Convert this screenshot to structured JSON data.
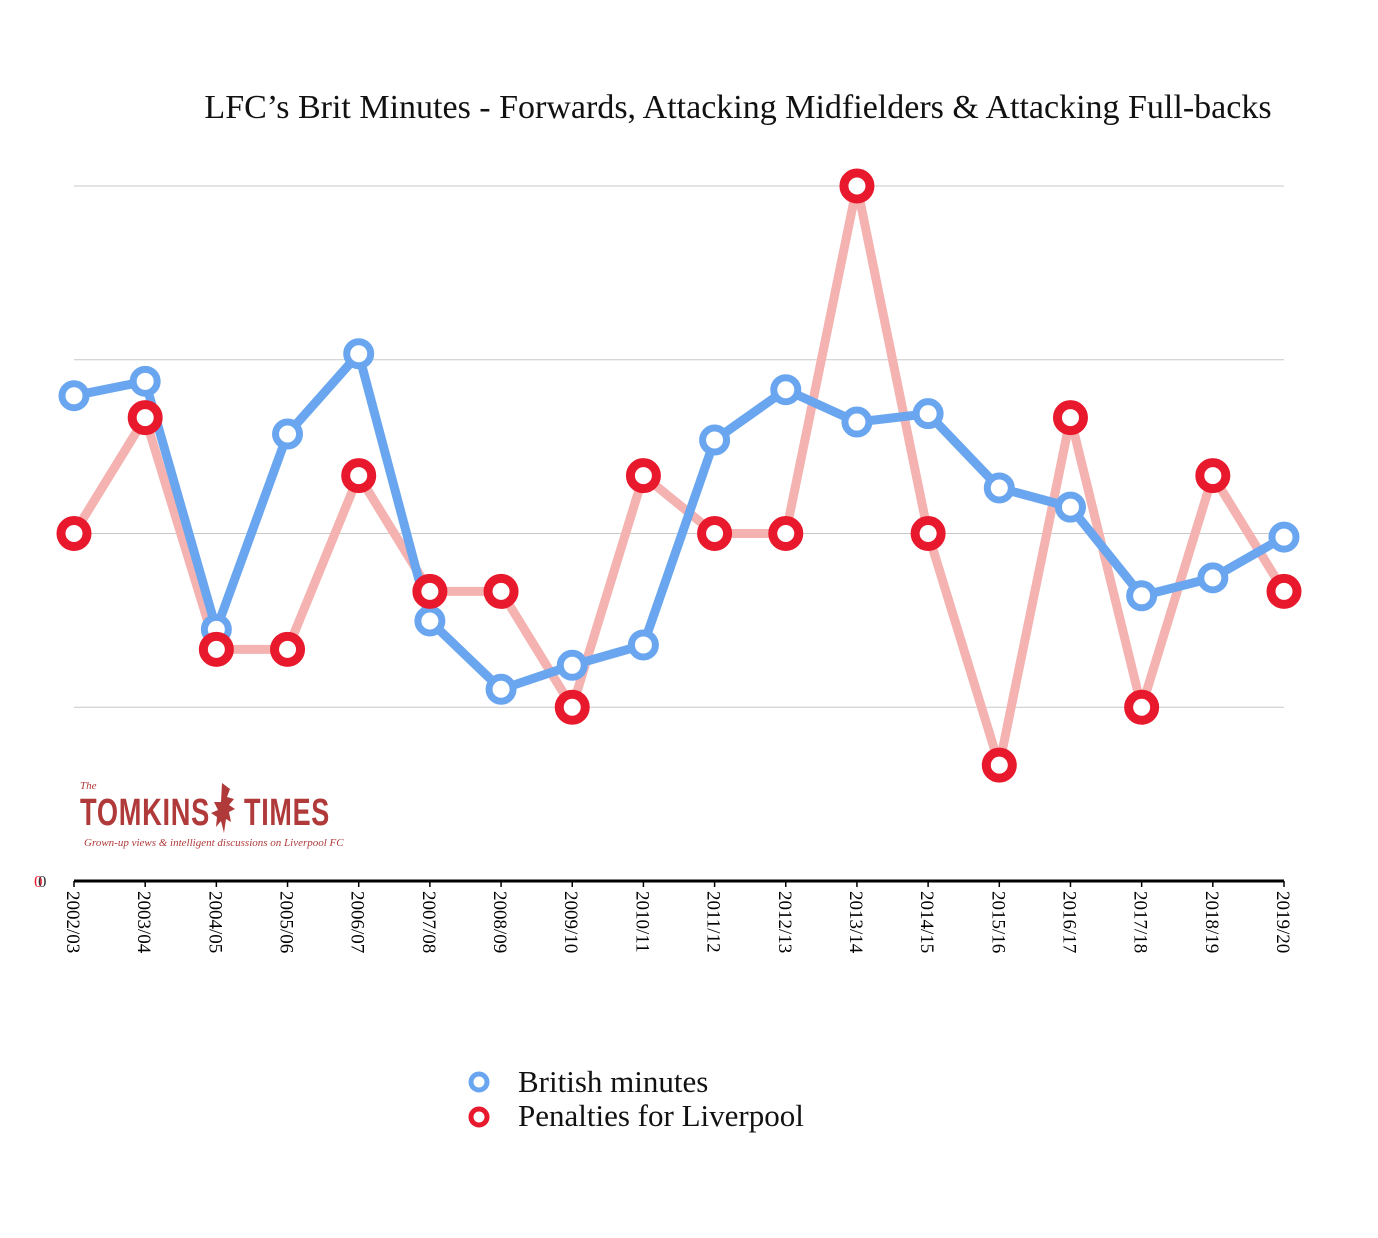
{
  "chart_data": {
    "type": "line",
    "title": "LFC’s Brit Minutes - Forwards, Attacking Midfielders & Attacking Full-backs",
    "categories": [
      "2002/03",
      "2003/04",
      "2004/05",
      "2005/06",
      "2006/07",
      "2007/08",
      "2008/09",
      "2009/10",
      "2010/11",
      "2011/12",
      "2012/13",
      "2013/14",
      "2014/15",
      "2015/16",
      "2016/17",
      "2017/18",
      "2018/19",
      "2019/20"
    ],
    "y_axis_label": "0",
    "grid": true,
    "legend_position": "bottom-center",
    "series": [
      {
        "name": "British minutes",
        "color": "#6aa6ef",
        "values": [
          3.25,
          3.37,
          1.3,
          2.93,
          3.6,
          1.37,
          0.8,
          1.0,
          1.17,
          2.88,
          3.3,
          3.03,
          3.1,
          2.48,
          2.32,
          1.58,
          1.73,
          2.07
        ],
        "ylim": [
          -0.8,
          5.0
        ]
      },
      {
        "name": "Penalties for Liverpool",
        "color": "#e8192c",
        "line_color": "#f4b2b0",
        "values": [
          6,
          8,
          4,
          4,
          7,
          5,
          5,
          3,
          7,
          6,
          6,
          12,
          6,
          2,
          8,
          3,
          7,
          5
        ],
        "ylim": [
          0,
          12
        ]
      }
    ]
  },
  "logo": {
    "small": "The",
    "word1": "TOMKINS",
    "word2": "TIMES",
    "tagline": "Grown-up views & intelligent discussions on Liverpool FC"
  }
}
